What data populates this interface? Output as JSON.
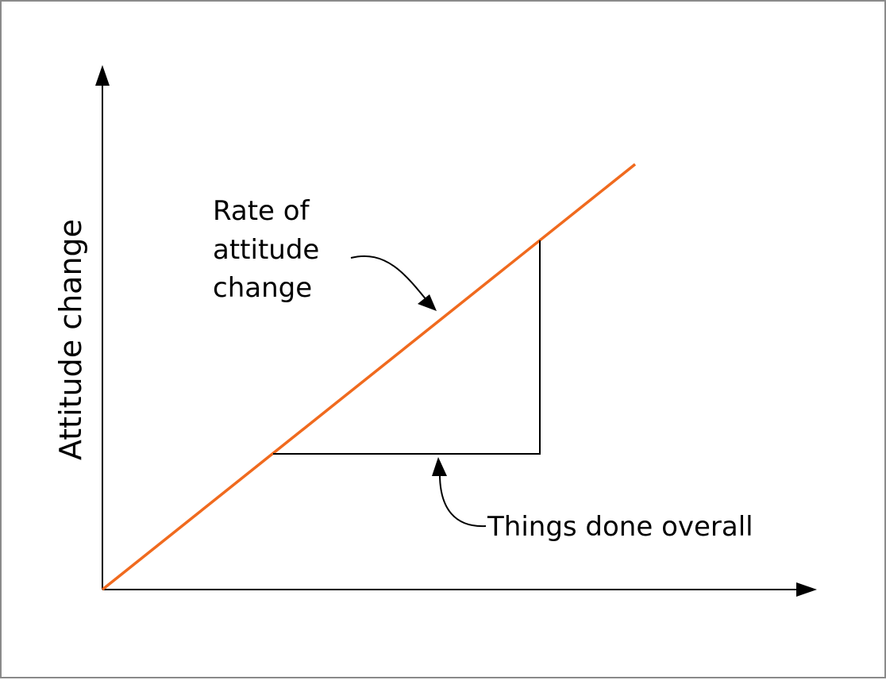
{
  "diagram": {
    "y_axis_label": "Attitude change",
    "slope_label": {
      "line1": "Rate of",
      "line2": "attitude",
      "line3": "change"
    },
    "run_label": "Things done overall",
    "colors": {
      "line": "#f06a1e",
      "ink": "#000000",
      "border": "#8a8a8a"
    }
  }
}
